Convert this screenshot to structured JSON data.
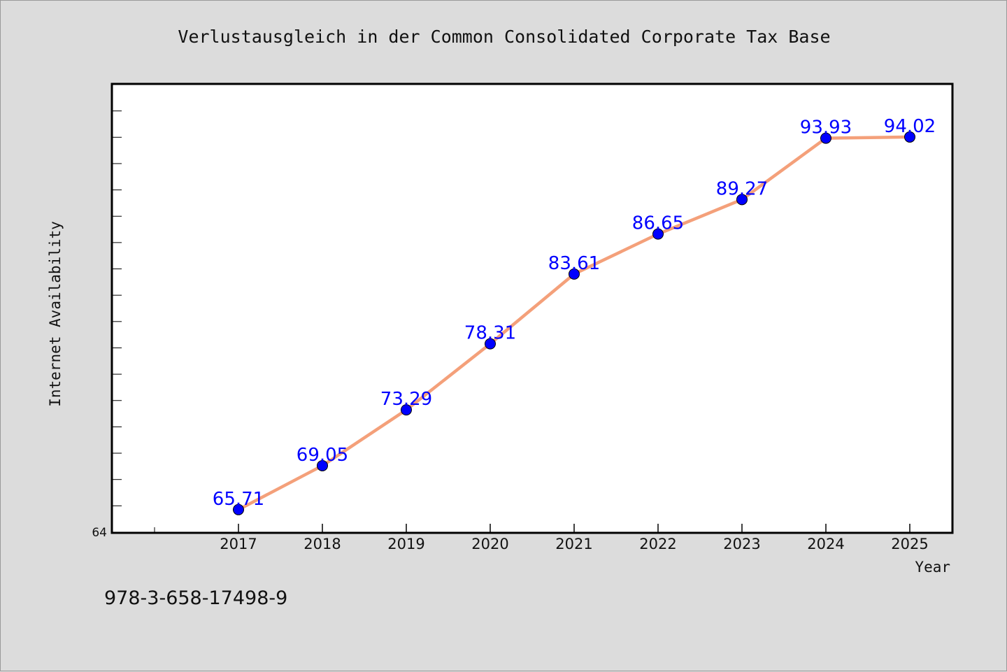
{
  "chart_data": {
    "type": "line",
    "title": "Verlustausgleich in der Common Consolidated Corporate Tax Base",
    "xlabel": "Year",
    "ylabel": "Internet Availability",
    "categories": [
      "2017",
      "2018",
      "2019",
      "2020",
      "2021",
      "2022",
      "2023",
      "2024",
      "2025"
    ],
    "series": [
      {
        "values": [
          65.71,
          69.05,
          73.29,
          78.31,
          83.61,
          86.65,
          89.27,
          93.93,
          94.02
        ],
        "labels": [
          "65.71",
          "69.05",
          "73.29",
          "78.31",
          "83.61",
          "86.65",
          "89.27",
          "93.93",
          "94.02"
        ]
      }
    ],
    "ylim": [
      64,
      98
    ],
    "y_tick_labels": [
      "64"
    ],
    "grid": false,
    "legend": "none",
    "colors": {
      "line": "#f4a07a",
      "marker": "#0000ff",
      "label": "#0000ff",
      "background": "#dcdcdc",
      "plot_background": "#ffffff"
    }
  },
  "footer_note": "978-3-658-17498-9"
}
